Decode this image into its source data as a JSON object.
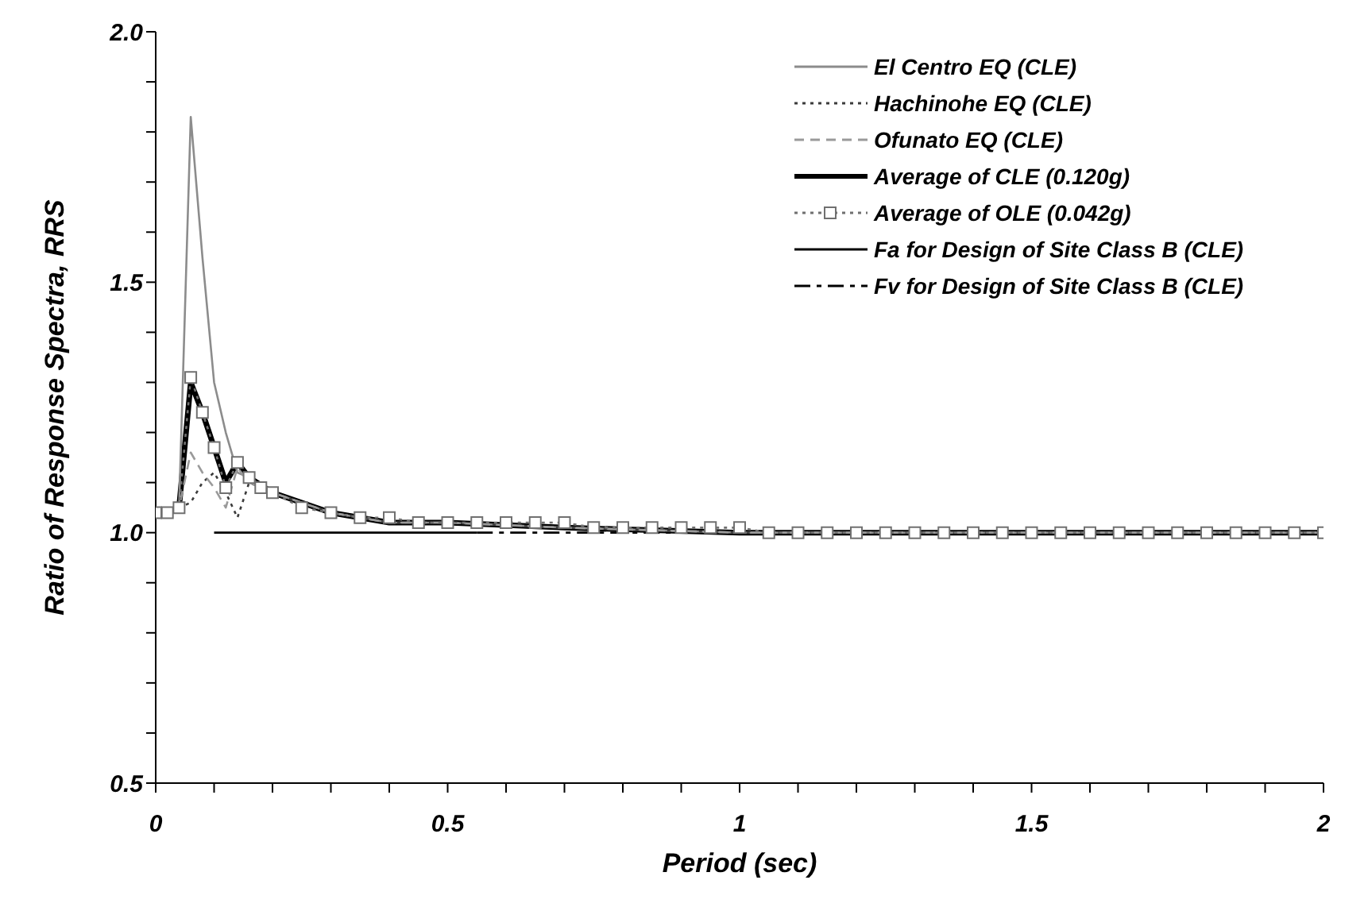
{
  "chart_data": {
    "type": "line",
    "xlabel": "Period (sec)",
    "ylabel": "Ratio of Response Spectra, RRS",
    "xlim": [
      0,
      2
    ],
    "ylim": [
      0.5,
      2
    ],
    "xticks": [
      0,
      {
        "value": 0.1,
        "label": null
      },
      {
        "value": 0.2,
        "label": null
      },
      {
        "value": 0.3,
        "label": null
      },
      {
        "value": 0.4,
        "label": null
      },
      0.5,
      {
        "value": 0.6,
        "label": null
      },
      {
        "value": 0.7,
        "label": null
      },
      {
        "value": 0.8,
        "label": null
      },
      {
        "value": 0.9,
        "label": null
      },
      1,
      {
        "value": 1.1,
        "label": null
      },
      {
        "value": 1.2,
        "label": null
      },
      {
        "value": 1.3,
        "label": null
      },
      {
        "value": 1.4,
        "label": null
      },
      1.5,
      {
        "value": 1.6,
        "label": null
      },
      {
        "value": 1.7,
        "label": null
      },
      {
        "value": 1.8,
        "label": null
      },
      {
        "value": 1.9,
        "label": null
      },
      2
    ],
    "yticks": [
      0.5,
      {
        "value": 0.6,
        "label": null
      },
      {
        "value": 0.7,
        "label": null
      },
      {
        "value": 0.8,
        "label": null
      },
      {
        "value": 0.9,
        "label": null
      },
      {
        "value": 1,
        "label": "1.0"
      },
      {
        "value": 1.1,
        "label": null
      },
      {
        "value": 1.2,
        "label": null
      },
      {
        "value": 1.3,
        "label": null
      },
      {
        "value": 1.4,
        "label": null
      },
      1.5,
      {
        "value": 1.6,
        "label": null
      },
      {
        "value": 1.7,
        "label": null
      },
      {
        "value": 1.8,
        "label": null
      },
      {
        "value": 1.9,
        "label": null
      },
      {
        "value": 2,
        "label": "2.0"
      }
    ],
    "grid": false,
    "legend": "top right",
    "marker": "none",
    "series": [
      {
        "name": "El Centro EQ (CLE)",
        "color": "#8c8c8c",
        "line_style": "solid",
        "x": [
          0,
          0.02,
          0.04,
          0.06,
          0.08,
          0.1,
          0.12,
          0.14,
          0.16,
          0.2,
          0.3,
          0.4,
          0.5,
          0.7,
          1,
          1.5,
          2
        ],
        "values": [
          1.04,
          1.04,
          1.05,
          1.83,
          1.55,
          1.3,
          1.2,
          1.12,
          1.11,
          1.08,
          1.04,
          1.02,
          1.02,
          1.01,
          1.0,
          1.0,
          1.0
        ]
      },
      {
        "name": "Hachinohe EQ (CLE)",
        "color": "#3c3c3c",
        "line_style": "dotted",
        "x": [
          0,
          0.02,
          0.04,
          0.06,
          0.08,
          0.1,
          0.12,
          0.14,
          0.16,
          0.2,
          0.3,
          0.4,
          0.5,
          0.7,
          1,
          1.5,
          2
        ],
        "values": [
          1.04,
          1.04,
          1.05,
          1.06,
          1.1,
          1.12,
          1.08,
          1.03,
          1.1,
          1.08,
          1.04,
          1.02,
          1.02,
          1.01,
          1.0,
          1.0,
          1.0
        ]
      },
      {
        "name": "Ofunato EQ (CLE)",
        "color": "#9a9a9a",
        "line_style": "dashed",
        "x": [
          0,
          0.02,
          0.04,
          0.06,
          0.08,
          0.1,
          0.12,
          0.14,
          0.16,
          0.2,
          0.3,
          0.4,
          0.5,
          0.7,
          1,
          1.5,
          2
        ],
        "values": [
          1.04,
          1.04,
          1.05,
          1.16,
          1.12,
          1.09,
          1.05,
          1.13,
          1.1,
          1.08,
          1.04,
          1.02,
          1.02,
          1.01,
          1.0,
          1.0,
          1.0
        ]
      },
      {
        "name": "Average of CLE (0.120g)",
        "color": "#000000",
        "line_style": "solid",
        "x": [
          0,
          0.02,
          0.04,
          0.06,
          0.08,
          0.1,
          0.12,
          0.14,
          0.16,
          0.2,
          0.3,
          0.4,
          0.5,
          0.7,
          1,
          1.5,
          2
        ],
        "values": [
          1.04,
          1.04,
          1.05,
          1.3,
          1.24,
          1.17,
          1.1,
          1.14,
          1.11,
          1.08,
          1.04,
          1.02,
          1.02,
          1.01,
          1.0,
          1.0,
          1.0
        ]
      },
      {
        "name": "Average of OLE (0.042g)",
        "color": "#707070",
        "line_style": "dotted",
        "marker": "square",
        "x": [
          0,
          0.02,
          0.04,
          0.06,
          0.08,
          0.1,
          0.12,
          0.14,
          0.16,
          0.18,
          0.2,
          0.25,
          0.3,
          0.35,
          0.4,
          0.45,
          0.5,
          0.55,
          0.6,
          0.65,
          0.7,
          0.75,
          0.8,
          0.85,
          0.9,
          0.95,
          1,
          1.05,
          1.1,
          1.15,
          1.2,
          1.25,
          1.3,
          1.35,
          1.4,
          1.45,
          1.5,
          1.55,
          1.6,
          1.65,
          1.7,
          1.75,
          1.8,
          1.85,
          1.9,
          1.95,
          2
        ],
        "values": [
          1.04,
          1.04,
          1.05,
          1.31,
          1.24,
          1.17,
          1.09,
          1.14,
          1.11,
          1.09,
          1.08,
          1.05,
          1.04,
          1.03,
          1.03,
          1.02,
          1.02,
          1.02,
          1.02,
          1.02,
          1.02,
          1.01,
          1.01,
          1.01,
          1.01,
          1.01,
          1.01,
          1.0,
          1.0,
          1.0,
          1.0,
          1.0,
          1.0,
          1.0,
          1.0,
          1.0,
          1.0,
          1.0,
          1.0,
          1.0,
          1.0,
          1.0,
          1.0,
          1.0,
          1.0,
          1.0,
          1.0
        ]
      },
      {
        "name": "Fa for Design of Site Class B (CLE)",
        "color": "#000000",
        "line_style": "solid",
        "x": [
          0.1,
          0.55
        ],
        "values": [
          1.0,
          1.0
        ]
      },
      {
        "name": "Fv for Design of Site Class B (CLE)",
        "color": "#000000",
        "line_style": "dashdot",
        "x": [
          0.55,
          2
        ],
        "values": [
          1.0,
          1.0
        ]
      }
    ]
  }
}
